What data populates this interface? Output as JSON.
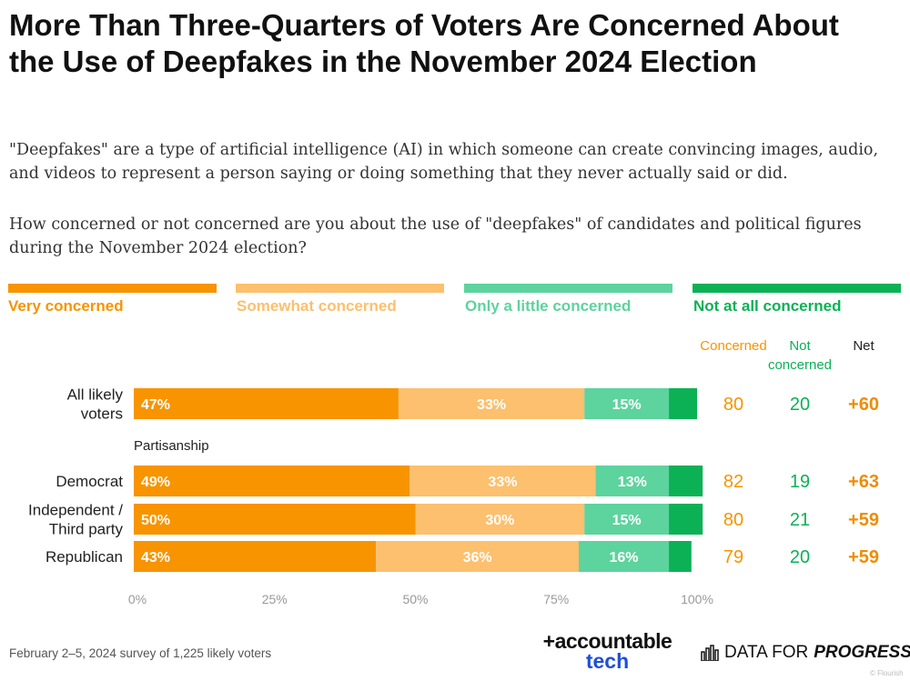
{
  "title": "More Than Three-Quarters of Voters Are Concerned About the Use of Deepfakes in the November 2024 Election",
  "subtitle": "\"Deepfakes\" are a type of artificial intelligence (AI) in which someone can create convincing images, audio, and videos to represent a person saying or doing something that they never actually said or did.",
  "question": "How concerned or not concerned are you about the use of \"deepfakes\" of candidates and political figures during the November 2024 election?",
  "colors": {
    "very": "#F79400",
    "somewhat": "#FCC06E",
    "little": "#5DD39E",
    "notatall": "#0CB156",
    "net": "#F08C00",
    "axis": "#999999"
  },
  "chart_data": {
    "type": "bar",
    "orientation": "horizontal",
    "stacked": true,
    "xlim": [
      0,
      100
    ],
    "xticks": [
      "0%",
      "25%",
      "50%",
      "75%",
      "100%"
    ],
    "legend_position": "top",
    "series": [
      {
        "key": "very",
        "name": "Very concerned"
      },
      {
        "key": "somewhat",
        "name": "Somewhat concerned"
      },
      {
        "key": "little",
        "name": "Only a little concerned"
      },
      {
        "key": "notatall",
        "name": "Not at all concerned"
      }
    ],
    "summary_headers": {
      "concerned": [
        "Concerned"
      ],
      "not_concerned": [
        "Not",
        "concerned"
      ],
      "net": [
        "Net"
      ]
    },
    "group_label": "Partisanship",
    "rows": [
      {
        "label": [
          "All likely",
          "voters"
        ],
        "values": [
          47,
          33,
          15,
          5
        ],
        "labels": [
          "47%",
          "33%",
          "15%",
          ""
        ],
        "concerned": "80",
        "not_concerned": "20",
        "net": "+60"
      },
      {
        "label": [
          "Democrat"
        ],
        "values": [
          49,
          33,
          13,
          6
        ],
        "labels": [
          "49%",
          "33%",
          "13%",
          ""
        ],
        "concerned": "82",
        "not_concerned": "19",
        "net": "+63"
      },
      {
        "label": [
          "Independent /",
          "Third party"
        ],
        "values": [
          50,
          30,
          15,
          6
        ],
        "labels": [
          "50%",
          "30%",
          "15%",
          ""
        ],
        "concerned": "80",
        "not_concerned": "21",
        "net": "+59"
      },
      {
        "label": [
          "Republican"
        ],
        "values": [
          43,
          36,
          16,
          4
        ],
        "labels": [
          "43%",
          "36%",
          "16%",
          ""
        ],
        "concerned": "79",
        "not_concerned": "20",
        "net": "+59"
      }
    ]
  },
  "footer": {
    "source": "February 2–5, 2024 survey of 1,225 likely voters",
    "logo1_line1": "+accountable",
    "logo1_line2": "tech",
    "logo2_regular": "DATA FOR",
    "logo2_strong": "PROGRESS",
    "watermark": "© Flourish"
  }
}
